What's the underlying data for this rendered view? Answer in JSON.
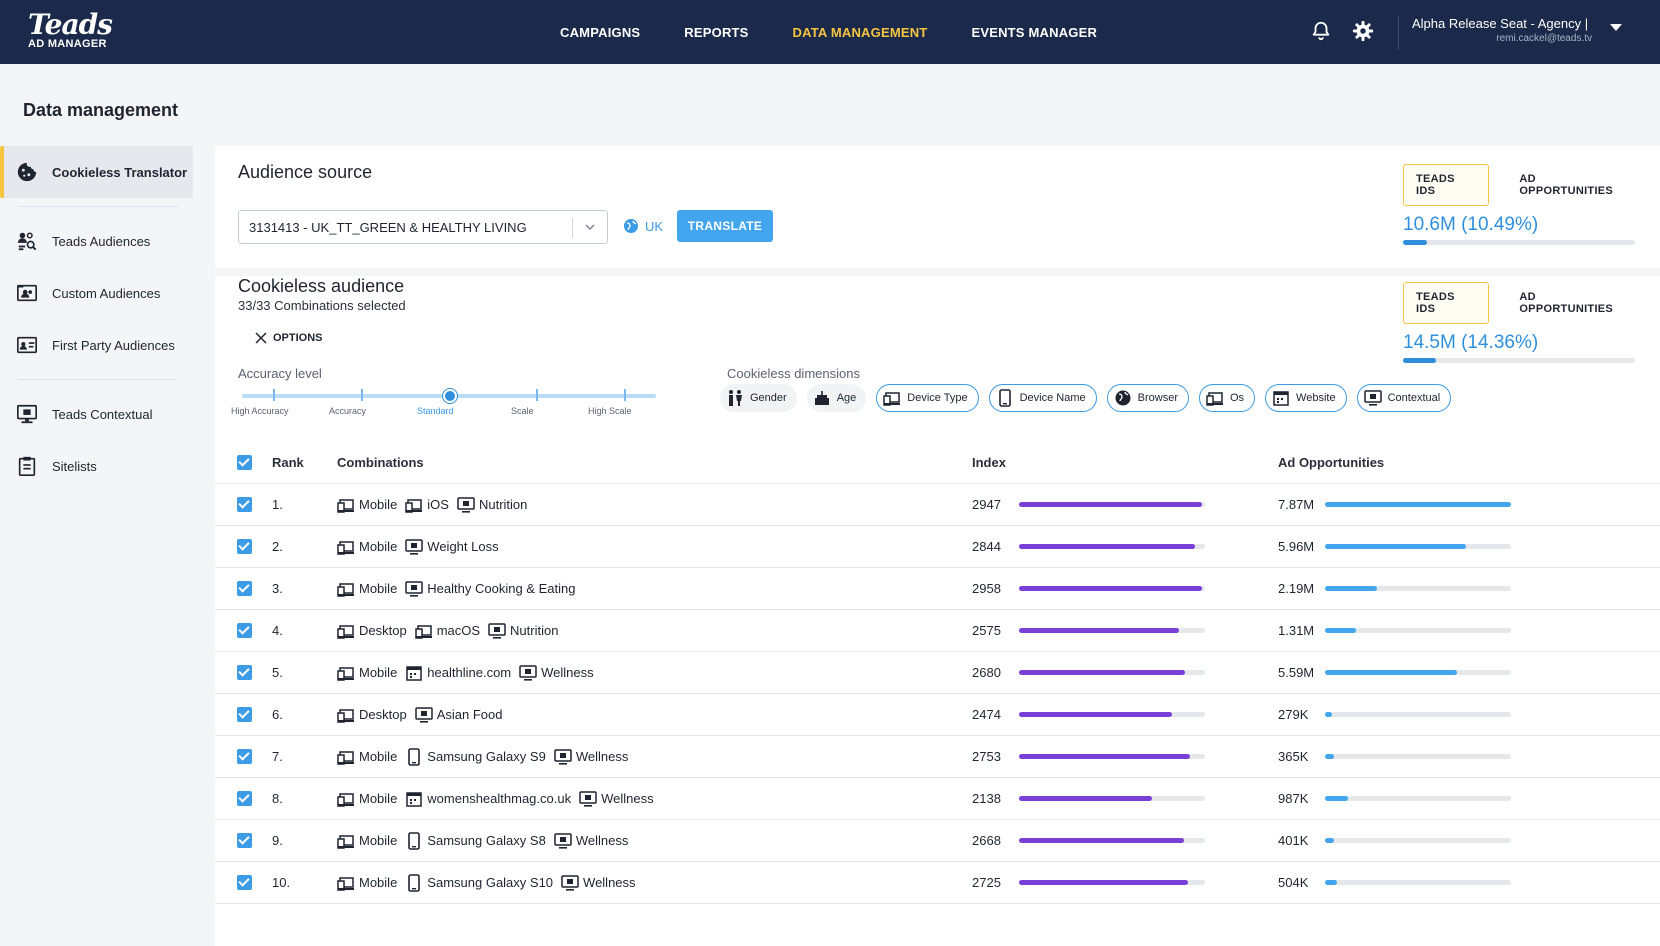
{
  "app": {
    "logo": "Teads",
    "logo_sub": "AD MANAGER"
  },
  "nav": [
    {
      "label": "CAMPAIGNS"
    },
    {
      "label": "REPORTS"
    },
    {
      "label": "DATA MANAGEMENT",
      "active": true
    },
    {
      "label": "EVENTS MANAGER"
    }
  ],
  "user": {
    "name": "Alpha Release Seat - Agency | E",
    "email": "remi.cackel@teads.tv"
  },
  "page_title": "Data management",
  "sidebar": {
    "items": [
      {
        "label": "Cookieless Translator",
        "icon": "cookie-icon",
        "active": true
      },
      {
        "label": "Teads Audiences",
        "icon": "audience-search-icon"
      },
      {
        "label": "Custom Audiences",
        "icon": "contact-card-icon"
      },
      {
        "label": "First Party Audiences",
        "icon": "id-card-icon"
      },
      {
        "label": "Teads Contextual",
        "icon": "monitor-icon"
      },
      {
        "label": "Sitelists",
        "icon": "clipboard-icon"
      }
    ]
  },
  "audience_source": {
    "title": "Audience source",
    "selected": "3131413 - UK_TT_GREEN & HEALTHY LIVING",
    "geo": "UK",
    "translate_label": "TRANSLATE",
    "tabs": [
      "TEADS IDS",
      "AD OPPORTUNITIES"
    ],
    "value": "10.6M (10.49%)",
    "fraction": 0.105
  },
  "cookieless": {
    "title": "Cookieless audience",
    "subtitle": "33/33 Combinations selected",
    "options_label": "OPTIONS",
    "tabs": [
      "TEADS IDS",
      "AD OPPORTUNITIES"
    ],
    "value": "14.5M (14.36%)",
    "fraction": 0.144,
    "accuracy_label": "Accuracy level",
    "accuracy_levels": [
      "High Accuracy",
      "Accuracy",
      "Standard",
      "Scale",
      "High Scale"
    ],
    "accuracy_selected": 2,
    "dimensions_label": "Cookieless dimensions",
    "dimensions": [
      {
        "label": "Gender",
        "icon": "gender-icon",
        "selected": false
      },
      {
        "label": "Age",
        "icon": "cake-icon",
        "selected": false
      },
      {
        "label": "Device Type",
        "icon": "devices-icon",
        "selected": true
      },
      {
        "label": "Device Name",
        "icon": "phone-icon",
        "selected": true
      },
      {
        "label": "Browser",
        "icon": "globe-icon",
        "selected": true
      },
      {
        "label": "Os",
        "icon": "devices-icon",
        "selected": true
      },
      {
        "label": "Website",
        "icon": "calendar-icon",
        "selected": true
      },
      {
        "label": "Contextual",
        "icon": "monitor-icon",
        "selected": true
      }
    ]
  },
  "table": {
    "headers": {
      "rank": "Rank",
      "combinations": "Combinations",
      "index": "Index",
      "ad_opportunities": "Ad Opportunities"
    },
    "index_max": 3000,
    "rows": [
      {
        "rank": "1.",
        "segs": [
          {
            "icon": "devices-icon",
            "text": "Mobile"
          },
          {
            "icon": "devices-icon",
            "text": "iOS"
          },
          {
            "icon": "monitor-icon",
            "text": "Nutrition"
          }
        ],
        "index": "2947",
        "ad_opp": "7.87M",
        "ad_frac": 1.0
      },
      {
        "rank": "2.",
        "segs": [
          {
            "icon": "devices-icon",
            "text": "Mobile"
          },
          {
            "icon": "monitor-icon",
            "text": "Weight Loss"
          }
        ],
        "index": "2844",
        "ad_opp": "5.96M",
        "ad_frac": 0.757
      },
      {
        "rank": "3.",
        "segs": [
          {
            "icon": "devices-icon",
            "text": "Mobile"
          },
          {
            "icon": "monitor-icon",
            "text": "Healthy Cooking & Eating"
          }
        ],
        "index": "2958",
        "ad_opp": "2.19M",
        "ad_frac": 0.278
      },
      {
        "rank": "4.",
        "segs": [
          {
            "icon": "devices-icon",
            "text": "Desktop"
          },
          {
            "icon": "devices-icon",
            "text": "macOS"
          },
          {
            "icon": "monitor-icon",
            "text": "Nutrition"
          }
        ],
        "index": "2575",
        "ad_opp": "1.31M",
        "ad_frac": 0.166
      },
      {
        "rank": "5.",
        "segs": [
          {
            "icon": "devices-icon",
            "text": "Mobile"
          },
          {
            "icon": "calendar-icon",
            "text": "healthline.com"
          },
          {
            "icon": "monitor-icon",
            "text": "Wellness"
          }
        ],
        "index": "2680",
        "ad_opp": "5.59M",
        "ad_frac": 0.71
      },
      {
        "rank": "6.",
        "segs": [
          {
            "icon": "devices-icon",
            "text": "Desktop"
          },
          {
            "icon": "monitor-icon",
            "text": "Asian Food"
          }
        ],
        "index": "2474",
        "ad_opp": "279K",
        "ad_frac": 0.035
      },
      {
        "rank": "7.",
        "segs": [
          {
            "icon": "devices-icon",
            "text": "Mobile"
          },
          {
            "icon": "phone-icon",
            "text": "Samsung Galaxy S9"
          },
          {
            "icon": "monitor-icon",
            "text": "Wellness"
          }
        ],
        "index": "2753",
        "ad_opp": "365K",
        "ad_frac": 0.046
      },
      {
        "rank": "8.",
        "segs": [
          {
            "icon": "devices-icon",
            "text": "Mobile"
          },
          {
            "icon": "calendar-icon",
            "text": "womenshealthmag.co.uk"
          },
          {
            "icon": "monitor-icon",
            "text": "Wellness"
          }
        ],
        "index": "2138",
        "ad_opp": "987K",
        "ad_frac": 0.125
      },
      {
        "rank": "9.",
        "segs": [
          {
            "icon": "devices-icon",
            "text": "Mobile"
          },
          {
            "icon": "phone-icon",
            "text": "Samsung Galaxy S8"
          },
          {
            "icon": "monitor-icon",
            "text": "Wellness"
          }
        ],
        "index": "2668",
        "ad_opp": "401K",
        "ad_frac": 0.051
      },
      {
        "rank": "10.",
        "segs": [
          {
            "icon": "devices-icon",
            "text": "Mobile"
          },
          {
            "icon": "phone-icon",
            "text": "Samsung Galaxy S10"
          },
          {
            "icon": "monitor-icon",
            "text": "Wellness"
          }
        ],
        "index": "2725",
        "ad_opp": "504K",
        "ad_frac": 0.064
      }
    ]
  },
  "colors": {
    "nav_bg": "#1b2a4a",
    "accent": "#f5c542",
    "blue": "#42a5ee",
    "purple": "#7a3fd6"
  }
}
